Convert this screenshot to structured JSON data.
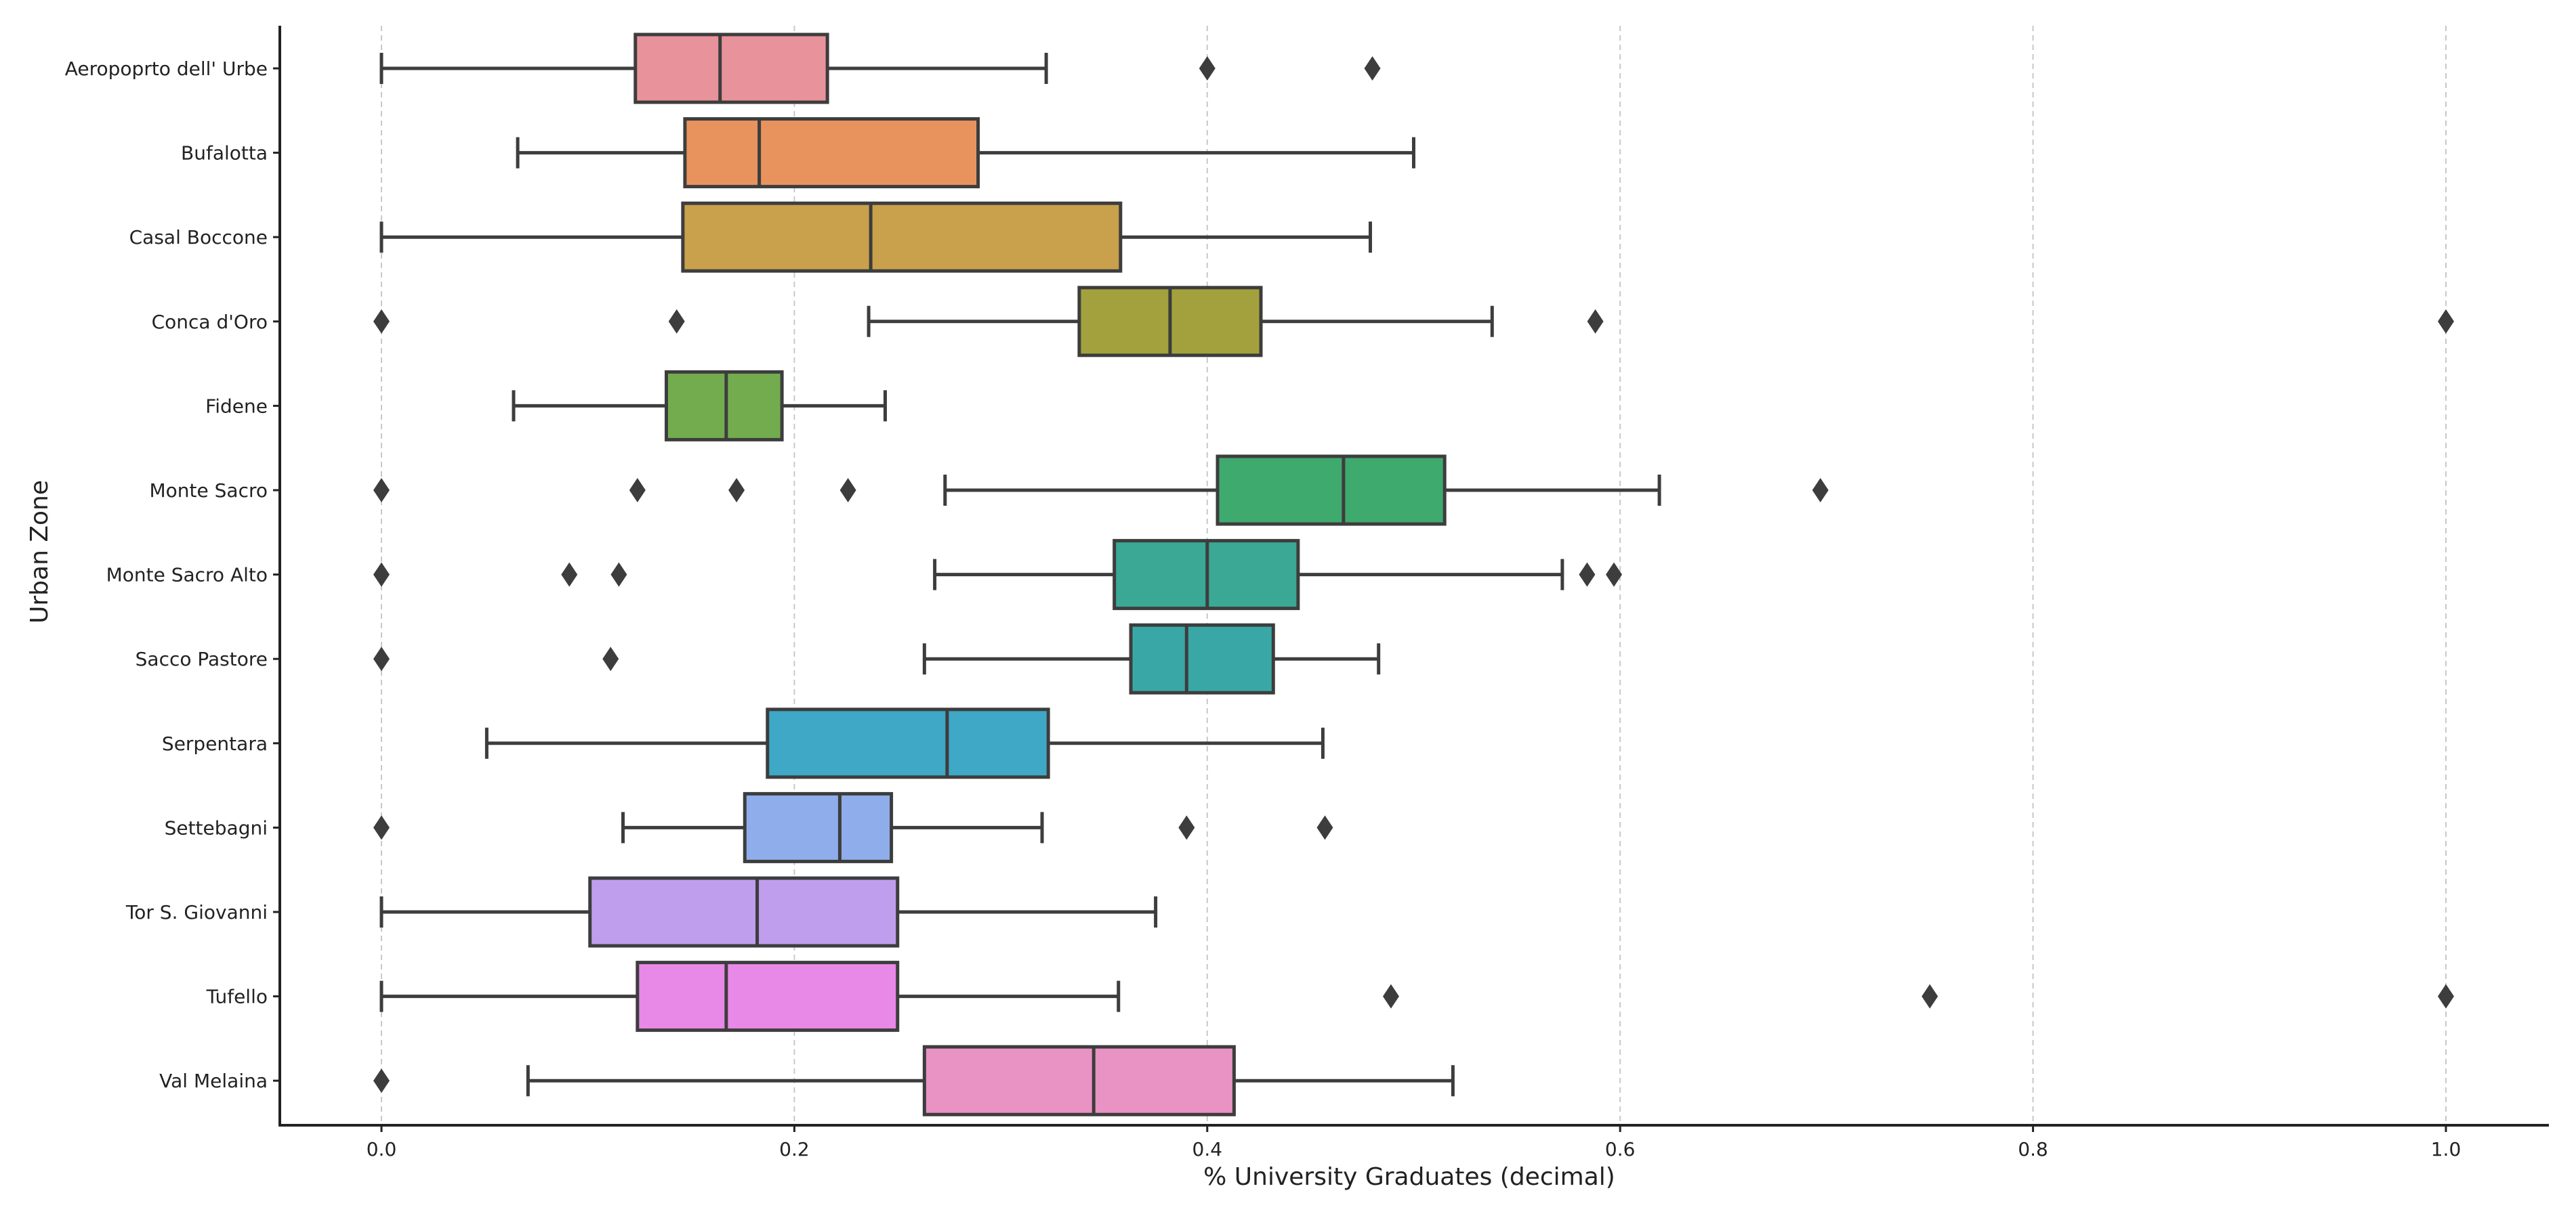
{
  "chart_data": {
    "type": "boxplot",
    "orientation": "horizontal",
    "title": "",
    "xlabel": "% University Graduates (decimal)",
    "ylabel": "Urban Zone",
    "xlim": [
      -0.05,
      1.05
    ],
    "x_ticks": [
      0.0,
      0.2,
      0.4,
      0.6,
      0.8,
      1.0
    ],
    "x_tick_labels": [
      "0.0",
      "0.2",
      "0.4",
      "0.6",
      "0.8",
      "1.0"
    ],
    "grid": "vertical dashed",
    "series": [
      {
        "category": "Aeropoprto dell' Urbe",
        "color": "#e8939b",
        "whisker_low": 0.0,
        "q1": 0.123,
        "median": 0.164,
        "q3": 0.216,
        "whisker_high": 0.322,
        "outliers": [
          0.4,
          0.48
        ]
      },
      {
        "category": "Bufalotta",
        "color": "#e8935e",
        "whisker_low": 0.066,
        "q1": 0.147,
        "median": 0.183,
        "q3": 0.289,
        "whisker_high": 0.5,
        "outliers": []
      },
      {
        "category": "Casal Boccone",
        "color": "#c9a04c",
        "whisker_low": 0.0,
        "q1": 0.146,
        "median": 0.237,
        "q3": 0.358,
        "whisker_high": 0.479,
        "outliers": []
      },
      {
        "category": "Conca d'Oro",
        "color": "#a3a13d",
        "whisker_low": 0.236,
        "q1": 0.338,
        "median": 0.382,
        "q3": 0.426,
        "whisker_high": 0.538,
        "outliers": [
          0.0,
          0.143,
          0.588,
          1.0
        ]
      },
      {
        "category": "Fidene",
        "color": "#73ac4f",
        "whisker_low": 0.064,
        "q1": 0.138,
        "median": 0.167,
        "q3": 0.194,
        "whisker_high": 0.244,
        "outliers": []
      },
      {
        "category": "Monte Sacro",
        "color": "#3faa6e",
        "whisker_low": 0.273,
        "q1": 0.405,
        "median": 0.466,
        "q3": 0.515,
        "whisker_high": 0.619,
        "outliers": [
          0.0,
          0.124,
          0.172,
          0.226,
          0.697
        ]
      },
      {
        "category": "Monte Sacro Alto",
        "color": "#3aa895",
        "whisker_low": 0.268,
        "q1": 0.355,
        "median": 0.4,
        "q3": 0.444,
        "whisker_high": 0.572,
        "outliers": [
          0.0,
          0.091,
          0.115,
          0.584,
          0.597
        ]
      },
      {
        "category": "Sacco Pastore",
        "color": "#3aa7a7",
        "whisker_low": 0.263,
        "q1": 0.363,
        "median": 0.39,
        "q3": 0.432,
        "whisker_high": 0.483,
        "outliers": [
          0.0,
          0.111
        ]
      },
      {
        "category": "Serpentara",
        "color": "#3ea8c6",
        "whisker_low": 0.051,
        "q1": 0.187,
        "median": 0.274,
        "q3": 0.323,
        "whisker_high": 0.456,
        "outliers": []
      },
      {
        "category": "Settebagni",
        "color": "#8fadea",
        "whisker_low": 0.117,
        "q1": 0.176,
        "median": 0.222,
        "q3": 0.247,
        "whisker_high": 0.32,
        "outliers": [
          0.0,
          0.39,
          0.457
        ]
      },
      {
        "category": "Tor S. Giovanni",
        "color": "#c09eee",
        "whisker_low": 0.0,
        "q1": 0.101,
        "median": 0.182,
        "q3": 0.25,
        "whisker_high": 0.375,
        "outliers": []
      },
      {
        "category": "Tufello",
        "color": "#e889e8",
        "whisker_low": 0.0,
        "q1": 0.124,
        "median": 0.167,
        "q3": 0.25,
        "whisker_high": 0.357,
        "outliers": [
          0.489,
          0.75,
          1.0
        ]
      },
      {
        "category": "Val Melaina",
        "color": "#e992c4",
        "whisker_low": 0.071,
        "q1": 0.263,
        "median": 0.345,
        "q3": 0.413,
        "whisker_high": 0.519,
        "outliers": [
          0.0
        ]
      }
    ]
  }
}
